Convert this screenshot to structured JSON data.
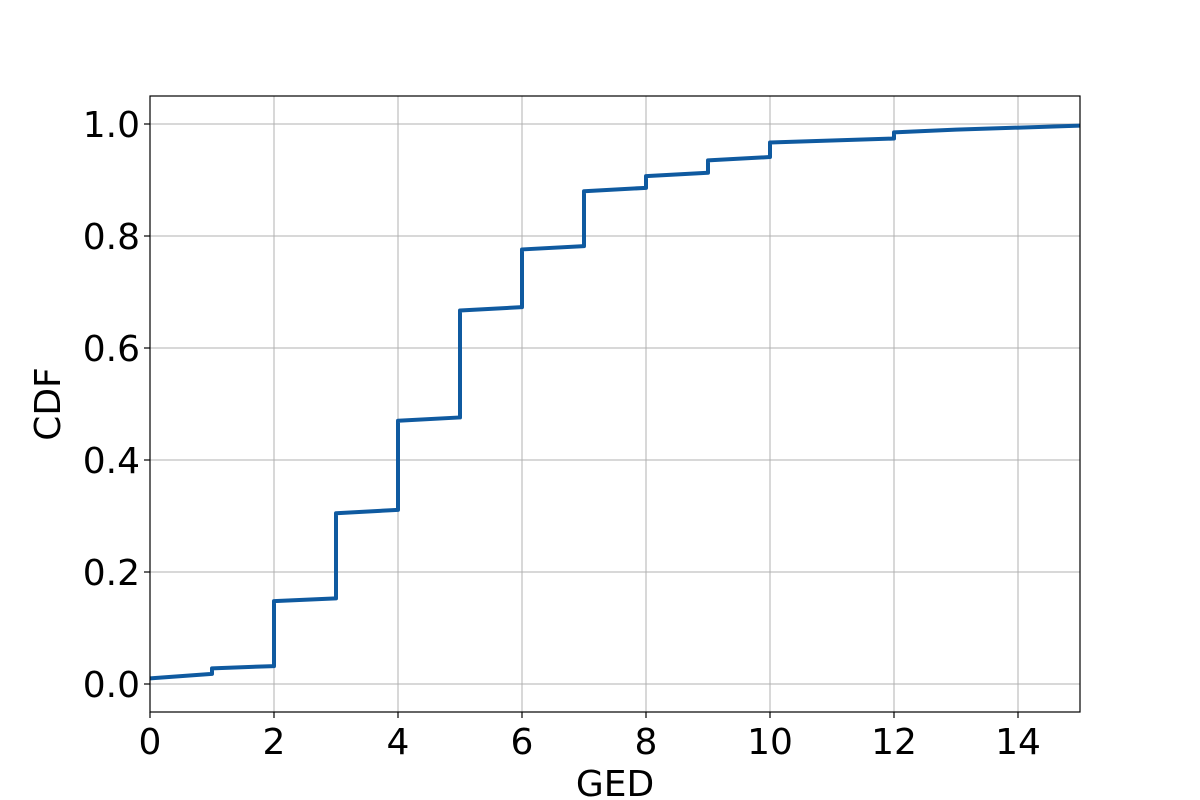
{
  "chart_data": {
    "type": "line",
    "title": "",
    "xlabel": "GED",
    "ylabel": "CDF",
    "xlim": [
      0,
      15
    ],
    "ylim": [
      -0.05,
      1.05
    ],
    "xticks": [
      0,
      2,
      4,
      6,
      8,
      10,
      12,
      14
    ],
    "yticks": [
      0.0,
      0.2,
      0.4,
      0.6,
      0.8,
      1.0
    ],
    "xtick_labels": [
      "0",
      "2",
      "4",
      "6",
      "8",
      "10",
      "12",
      "14"
    ],
    "ytick_labels": [
      "0.0",
      "0.2",
      "0.4",
      "0.6",
      "0.8",
      "1.0"
    ],
    "grid": true,
    "series": [
      {
        "color": "#0f5aa0",
        "x": [
          0,
          1,
          1,
          2,
          2,
          3,
          3,
          4,
          4,
          5,
          5,
          6,
          6,
          7,
          7,
          8,
          8,
          9,
          9,
          10,
          10,
          12,
          12,
          13,
          15
        ],
        "y": [
          0.01,
          0.018,
          0.028,
          0.032,
          0.148,
          0.153,
          0.305,
          0.311,
          0.47,
          0.476,
          0.667,
          0.673,
          0.776,
          0.782,
          0.88,
          0.886,
          0.907,
          0.913,
          0.935,
          0.941,
          0.967,
          0.974,
          0.985,
          0.99,
          0.997
        ]
      }
    ]
  }
}
